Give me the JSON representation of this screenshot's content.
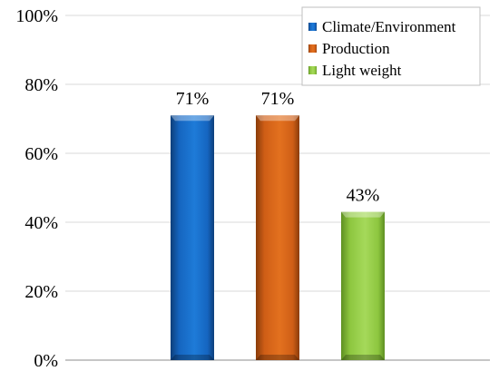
{
  "chart_data": {
    "type": "bar",
    "title": "",
    "xlabel": "",
    "ylabel": "",
    "ylim": [
      0,
      100
    ],
    "y_ticks": [
      {
        "value": 0,
        "label": "0%"
      },
      {
        "value": 20,
        "label": "20%"
      },
      {
        "value": 40,
        "label": "40%"
      },
      {
        "value": 60,
        "label": "60%"
      },
      {
        "value": 80,
        "label": "80%"
      },
      {
        "value": 100,
        "label": "100%"
      }
    ],
    "grid": true,
    "legend_position": "top-right",
    "series": [
      {
        "name": "Climate/Environment",
        "value": 71,
        "label": "71%",
        "color": "#1565C0"
      },
      {
        "name": "Production",
        "value": 71,
        "label": "71%",
        "color": "#D4621A"
      },
      {
        "name": "Light weight",
        "value": 43,
        "label": "43%",
        "color": "#8DC63F"
      }
    ]
  }
}
